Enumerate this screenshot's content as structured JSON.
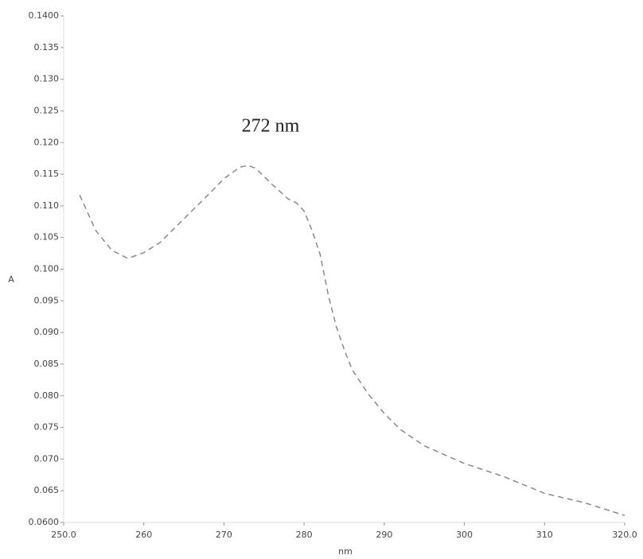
{
  "chart_data": {
    "type": "line",
    "annotation": "272 nm",
    "xlabel": "nm",
    "ylabel": "A",
    "x": [
      252,
      254,
      256,
      258,
      260,
      262,
      264,
      266,
      268,
      270,
      272,
      273,
      274,
      276,
      278,
      279,
      280,
      281,
      282,
      283,
      284,
      285,
      286,
      288,
      290,
      292,
      295,
      300,
      305,
      310,
      315,
      320
    ],
    "values": [
      0.1117,
      0.1061,
      0.103,
      0.1017,
      0.1026,
      0.1042,
      0.1067,
      0.1092,
      0.1117,
      0.1143,
      0.1161,
      0.1164,
      0.1159,
      0.1134,
      0.1111,
      0.1105,
      0.1092,
      0.1061,
      0.1023,
      0.096,
      0.091,
      0.0873,
      0.0841,
      0.0803,
      0.0772,
      0.0747,
      0.0721,
      0.0693,
      0.0672,
      0.0646,
      0.0631,
      0.0611
    ],
    "color": "#8a8a8a",
    "xlim": [
      250,
      320
    ],
    "xticks": [
      {
        "value": 250,
        "label": "250.0"
      },
      260,
      270,
      280,
      290,
      300,
      310,
      {
        "value": 320,
        "label": "320.0"
      }
    ],
    "ylim": [
      0.06,
      0.14
    ],
    "yticks": [
      {
        "value": 0.06,
        "label": "0.0600"
      },
      0.065,
      {
        "value": 0.07,
        "label": "0.070"
      },
      0.075,
      {
        "value": 0.08,
        "label": "0.080"
      },
      0.085,
      {
        "value": 0.09,
        "label": "0.090"
      },
      0.095,
      {
        "value": 0.1,
        "label": "0.100"
      },
      0.105,
      {
        "value": 0.11,
        "label": "0.110"
      },
      0.115,
      {
        "value": 0.12,
        "label": "0.120"
      },
      0.125,
      {
        "value": 0.13,
        "label": "0.130"
      },
      0.135,
      {
        "value": 0.14,
        "label": "0.1400"
      }
    ],
    "grid": false
  }
}
